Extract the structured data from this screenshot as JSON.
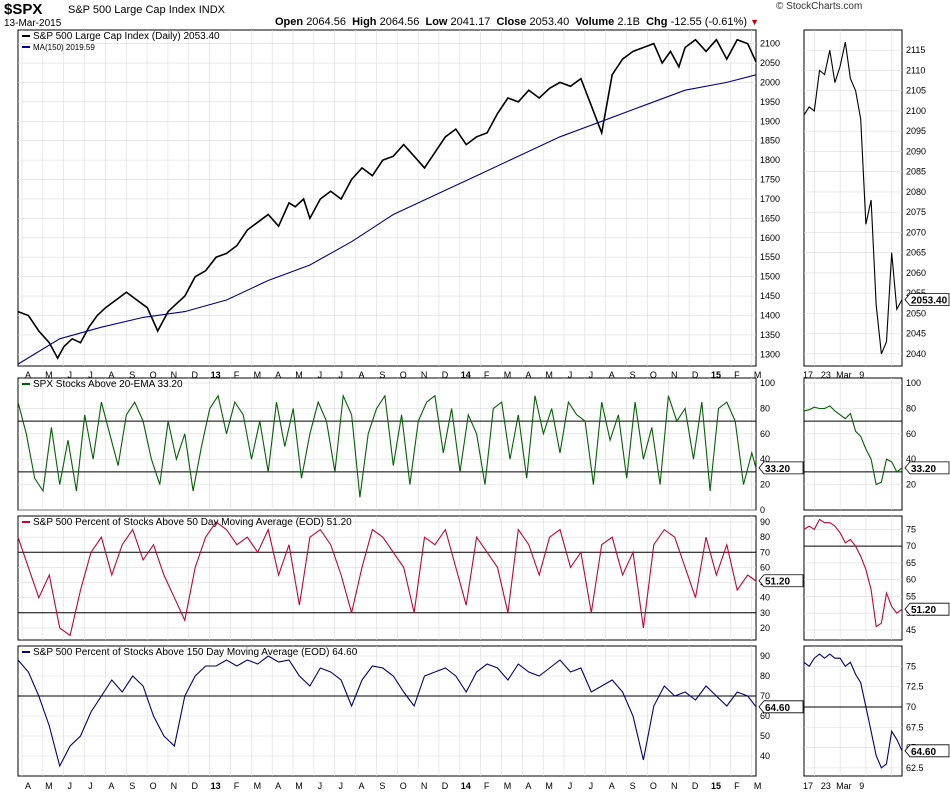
{
  "header": {
    "symbol": "$SPX",
    "name": "S&P 500 Large Cap Index",
    "exchange": "INDX",
    "date": "13-Mar-2015",
    "brand": "© StockCharts.com",
    "open_label": "Open",
    "open": "2064.56",
    "high_label": "High",
    "high": "2064.56",
    "low_label": "Low",
    "low": "2041.17",
    "close_label": "Close",
    "close": "2053.40",
    "volume_label": "Volume",
    "volume": "2.1B",
    "chg_label": "Chg",
    "chg": "-12.55 (-0.61%)"
  },
  "colors": {
    "price": "#000000",
    "ma": "#00008b",
    "ema20": "#006400",
    "pct50": "#cc0033",
    "pct150": "#000080",
    "grid": "#dcdcdc"
  },
  "chart_data": [
    {
      "type": "line",
      "panel": "price",
      "legend": [
        "S&P 500 Large Cap Index (Daily) 2053.40",
        "MA(150) 2019.59"
      ],
      "x_tick_labels": [
        "A",
        "M",
        "J",
        "J",
        "A",
        "S",
        "O",
        "N",
        "D",
        "13",
        "F",
        "M",
        "A",
        "M",
        "J",
        "J",
        "A",
        "S",
        "O",
        "N",
        "D",
        "14",
        "F",
        "M",
        "A",
        "M",
        "J",
        "J",
        "A",
        "S",
        "O",
        "N",
        "D",
        "15",
        "F",
        "M"
      ],
      "y_ticks": [
        1300,
        1350,
        1400,
        1450,
        1500,
        1550,
        1600,
        1650,
        1700,
        1750,
        1800,
        1850,
        1900,
        1950,
        2000,
        2050,
        2100
      ],
      "ylim": [
        1270,
        2135
      ],
      "series": [
        {
          "name": "S&P 500 Large Cap Index (Daily)",
          "x": [
            0,
            0.5,
            1,
            1.5,
            1.9,
            2.2,
            2.6,
            3,
            3.4,
            3.8,
            4.2,
            4.7,
            5.2,
            5.7,
            6.2,
            6.7,
            7.2,
            7.6,
            8.0,
            8.5,
            9,
            9.5,
            10,
            10.5,
            11,
            11.5,
            12,
            12.5,
            13,
            13.3,
            13.7,
            14,
            14.5,
            15,
            15.5,
            16,
            16.5,
            17,
            17.5,
            18,
            18.5,
            19,
            19.5,
            20,
            20.5,
            21,
            21.5,
            22,
            22.5,
            23,
            23.5,
            24,
            24.5,
            25,
            25.5,
            26,
            26.5,
            27,
            27.5,
            28,
            28.5,
            29,
            29.5,
            30,
            30.5,
            30.9,
            31.3,
            31.7,
            32,
            32.5,
            33,
            33.5,
            34,
            34.5,
            35,
            35.4
          ],
          "y": [
            1410,
            1400,
            1360,
            1330,
            1290,
            1320,
            1340,
            1330,
            1370,
            1400,
            1420,
            1440,
            1460,
            1440,
            1420,
            1360,
            1410,
            1430,
            1450,
            1500,
            1515,
            1550,
            1560,
            1580,
            1620,
            1640,
            1660,
            1630,
            1690,
            1680,
            1700,
            1650,
            1700,
            1720,
            1700,
            1750,
            1780,
            1760,
            1800,
            1810,
            1840,
            1810,
            1780,
            1820,
            1860,
            1880,
            1840,
            1860,
            1870,
            1920,
            1960,
            1950,
            1980,
            1960,
            1985,
            2000,
            1990,
            2010,
            1940,
            1870,
            2020,
            2060,
            2080,
            2090,
            2100,
            2050,
            2080,
            2040,
            2090,
            2110,
            2080,
            2110,
            2060,
            2110,
            2100,
            2053
          ]
        },
        {
          "name": "MA(150)",
          "x": [
            0,
            2,
            4,
            6,
            8,
            10,
            12,
            14,
            16,
            18,
            20,
            22,
            24,
            26,
            28,
            30,
            32,
            34,
            35.4
          ],
          "y": [
            1275,
            1340,
            1370,
            1395,
            1410,
            1440,
            1490,
            1530,
            1590,
            1660,
            1710,
            1760,
            1810,
            1860,
            1900,
            1940,
            1980,
            2000,
            2019.59
          ]
        }
      ]
    },
    {
      "type": "line",
      "panel": "price-zoom",
      "x_tick_labels": [
        "17",
        "23",
        "Mar",
        "9"
      ],
      "y_ticks": [
        2040,
        2045,
        2050,
        2055,
        2060,
        2065,
        2070,
        2075,
        2080,
        2085,
        2090,
        2095,
        2100,
        2105,
        2110,
        2115
      ],
      "ylim": [
        2037,
        2120
      ],
      "last_value": "2053.40",
      "series": [
        {
          "name": "",
          "x": [
            0,
            1,
            2,
            3,
            4,
            5,
            6,
            7,
            8,
            9,
            10,
            11,
            12,
            13,
            14,
            15,
            16,
            17,
            18,
            19
          ],
          "y": [
            2099,
            2101,
            2100,
            2110,
            2109,
            2115,
            2107,
            2111,
            2117,
            2108,
            2105,
            2098,
            2072,
            2078,
            2052,
            2040,
            2043,
            2065,
            2051,
            2053.4
          ]
        }
      ]
    },
    {
      "type": "line",
      "panel": "ema20",
      "legend": [
        "SPX Stocks Above 20-EMA 33.20"
      ],
      "y_ticks": [
        0,
        20,
        40,
        60,
        80,
        100
      ],
      "ylim": [
        0,
        104
      ],
      "reference_lines": [
        70,
        30
      ],
      "last_value": "33.20",
      "series": [
        {
          "name": "SPX Stocks Above 20-EMA",
          "x": [
            0,
            0.4,
            0.8,
            1.2,
            1.6,
            2,
            2.4,
            2.8,
            3.2,
            3.6,
            4,
            4.4,
            4.8,
            5.2,
            5.6,
            6,
            6.4,
            6.8,
            7.2,
            7.6,
            8,
            8.4,
            8.8,
            9.2,
            9.6,
            10,
            10.4,
            10.8,
            11.2,
            11.6,
            12,
            12.4,
            12.8,
            13.2,
            13.6,
            14,
            14.4,
            14.8,
            15.2,
            15.6,
            16,
            16.4,
            16.8,
            17.2,
            17.6,
            18,
            18.4,
            18.8,
            19.2,
            19.6,
            20,
            20.4,
            20.8,
            21.2,
            21.6,
            22,
            22.4,
            22.8,
            23.2,
            23.6,
            24,
            24.4,
            24.8,
            25.2,
            25.6,
            26,
            26.4,
            26.8,
            27.2,
            27.6,
            28,
            28.4,
            28.8,
            29.2,
            29.6,
            30,
            30.4,
            30.8,
            31.2,
            31.6,
            32,
            32.4,
            32.8,
            33.2,
            33.6,
            34,
            34.4,
            34.8,
            35.2,
            35.4
          ],
          "y": [
            85,
            60,
            25,
            15,
            65,
            20,
            55,
            15,
            75,
            40,
            85,
            60,
            35,
            75,
            85,
            70,
            40,
            20,
            70,
            40,
            60,
            15,
            50,
            80,
            90,
            60,
            85,
            75,
            40,
            70,
            30,
            85,
            50,
            80,
            25,
            60,
            85,
            70,
            30,
            90,
            75,
            10,
            60,
            80,
            90,
            35,
            75,
            20,
            70,
            85,
            90,
            45,
            80,
            30,
            75,
            60,
            20,
            80,
            85,
            40,
            75,
            25,
            90,
            60,
            80,
            45,
            85,
            75,
            70,
            20,
            85,
            55,
            75,
            25,
            85,
            40,
            65,
            20,
            90,
            70,
            80,
            40,
            85,
            15,
            80,
            85,
            70,
            20,
            45,
            33
          ]
        }
      ]
    },
    {
      "type": "line",
      "panel": "ema20-zoom",
      "y_ticks": [
        20,
        40,
        60,
        80,
        100
      ],
      "ylim": [
        0,
        104
      ],
      "reference_lines": [
        70,
        30
      ],
      "last_value": "33.20",
      "series": [
        {
          "name": "",
          "x": [
            0,
            1,
            2,
            3,
            4,
            5,
            6,
            7,
            8,
            9,
            10,
            11,
            12,
            13,
            14,
            15,
            16,
            17,
            18,
            19
          ],
          "y": [
            78,
            79,
            81,
            80,
            80,
            82,
            78,
            75,
            72,
            76,
            62,
            58,
            48,
            40,
            20,
            22,
            40,
            38,
            30,
            33.2
          ]
        }
      ]
    },
    {
      "type": "line",
      "panel": "pct50",
      "legend": [
        "S&P 500 Percent of Stocks Above 50 Day Moving Average (EOD) 51.20"
      ],
      "y_ticks": [
        20,
        30,
        40,
        50,
        60,
        70,
        80,
        90
      ],
      "ylim": [
        12,
        94
      ],
      "reference_lines": [
        70,
        30
      ],
      "last_value": "51.20",
      "series": [
        {
          "name": "S&P 500 Percent of Stocks Above 50 Day Moving Average (EOD)",
          "x": [
            0,
            0.5,
            1,
            1.5,
            2,
            2.5,
            3,
            3.5,
            4,
            4.5,
            5,
            5.5,
            6,
            6.5,
            7,
            7.5,
            8,
            8.5,
            9,
            9.5,
            10,
            10.5,
            11,
            11.5,
            12,
            12.5,
            13,
            13.5,
            14,
            14.5,
            15,
            15.5,
            16,
            16.5,
            17,
            17.5,
            18,
            18.5,
            19,
            19.5,
            20,
            20.5,
            21,
            21.5,
            22,
            22.5,
            23,
            23.5,
            24,
            24.5,
            25,
            25.5,
            26,
            26.5,
            27,
            27.5,
            28,
            28.5,
            29,
            29.5,
            30,
            30.5,
            31,
            31.5,
            32,
            32.5,
            33,
            33.5,
            34,
            34.5,
            35,
            35.4
          ],
          "y": [
            80,
            60,
            40,
            55,
            20,
            15,
            45,
            70,
            80,
            55,
            75,
            85,
            65,
            75,
            55,
            40,
            25,
            60,
            80,
            90,
            85,
            75,
            80,
            70,
            85,
            55,
            75,
            35,
            80,
            85,
            75,
            55,
            30,
            60,
            85,
            80,
            70,
            60,
            30,
            80,
            75,
            85,
            60,
            35,
            80,
            70,
            60,
            30,
            85,
            75,
            55,
            80,
            85,
            60,
            70,
            30,
            75,
            80,
            55,
            70,
            20,
            75,
            85,
            80,
            60,
            40,
            80,
            55,
            75,
            45,
            55,
            51
          ]
        }
      ]
    },
    {
      "type": "line",
      "panel": "pct50-zoom",
      "y_ticks": [
        45,
        50,
        55,
        60,
        65,
        70,
        75
      ],
      "ylim": [
        42,
        79
      ],
      "reference_lines": [
        70
      ],
      "last_value": "51.20",
      "series": [
        {
          "name": "",
          "x": [
            0,
            1,
            2,
            3,
            4,
            5,
            6,
            7,
            8,
            9,
            10,
            11,
            12,
            13,
            14,
            15,
            16,
            17,
            18,
            19
          ],
          "y": [
            75,
            76,
            75,
            78,
            77,
            77,
            76,
            74,
            71,
            72,
            70,
            67,
            63,
            57,
            46,
            47,
            56,
            52,
            50,
            51.2
          ]
        }
      ]
    },
    {
      "type": "line",
      "panel": "pct150",
      "legend": [
        "S&P 500 Percent of Stocks Above 150 Day Moving Average (EOD) 64.60"
      ],
      "y_ticks": [
        40,
        50,
        60,
        70,
        80,
        90
      ],
      "ylim": [
        30,
        95
      ],
      "reference_lines": [
        70
      ],
      "last_value": "64.60",
      "series": [
        {
          "name": "S&P 500 Percent of Stocks Above 150 Day Moving Average (EOD)",
          "x": [
            0,
            0.5,
            1,
            1.5,
            2,
            2.5,
            3,
            3.5,
            4,
            4.5,
            5,
            5.5,
            6,
            6.5,
            7,
            7.5,
            8,
            8.5,
            9,
            9.5,
            10,
            10.5,
            11,
            11.5,
            12,
            12.5,
            13,
            13.5,
            14,
            14.5,
            15,
            15.5,
            16,
            16.5,
            17,
            17.5,
            18,
            18.5,
            19,
            19.5,
            20,
            20.5,
            21,
            21.5,
            22,
            22.5,
            23,
            23.5,
            24,
            24.5,
            25,
            25.5,
            26,
            26.5,
            27,
            27.5,
            28,
            28.5,
            29,
            29.5,
            30,
            30.5,
            31,
            31.5,
            32,
            32.5,
            33,
            33.5,
            34,
            34.5,
            35,
            35.4
          ],
          "y": [
            88,
            82,
            70,
            55,
            35,
            45,
            50,
            62,
            70,
            78,
            72,
            80,
            75,
            60,
            50,
            45,
            70,
            80,
            85,
            85,
            88,
            85,
            88,
            86,
            90,
            87,
            88,
            80,
            75,
            84,
            82,
            78,
            65,
            78,
            85,
            84,
            80,
            72,
            65,
            80,
            82,
            84,
            80,
            72,
            82,
            86,
            84,
            78,
            86,
            82,
            80,
            84,
            88,
            82,
            84,
            72,
            75,
            78,
            72,
            60,
            38,
            65,
            75,
            70,
            72,
            68,
            75,
            70,
            65,
            72,
            70,
            64.6
          ]
        }
      ]
    },
    {
      "type": "line",
      "panel": "pct150-zoom",
      "y_ticks": [
        62.5,
        65.0,
        67.5,
        70.0,
        72.5,
        75.0
      ],
      "ylim": [
        61.5,
        77.5
      ],
      "reference_lines": [
        70
      ],
      "last_value": "64.60",
      "series": [
        {
          "name": "",
          "x": [
            0,
            1,
            2,
            3,
            4,
            5,
            6,
            7,
            8,
            9,
            10,
            11,
            12,
            13,
            14,
            15,
            16,
            17,
            18,
            19
          ],
          "y": [
            75.5,
            75,
            76,
            76.5,
            76,
            76.5,
            76,
            76,
            75,
            75.5,
            74,
            73,
            70,
            67,
            64,
            62.5,
            63,
            67,
            66,
            64.6
          ]
        }
      ]
    }
  ]
}
